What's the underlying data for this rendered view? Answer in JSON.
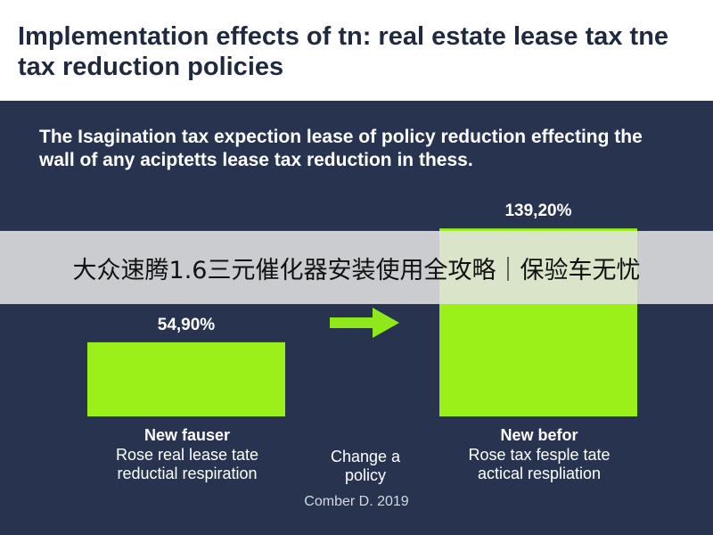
{
  "chart_data": {
    "type": "bar",
    "title": "Implementation effects of tn: real estate lease tax tne tax reduction policies",
    "subtitle": "The Isagination tax expection lease of policy reduction effecting the wall of any aciptetts lease tax reduction in thess.",
    "categories": [
      "New fauser",
      "New befor"
    ],
    "category_subtitles": [
      "Rose real lease tate\nreductial respiration",
      "Rose tax fesple tate\nactical respliation"
    ],
    "values": [
      54.9,
      139.2
    ],
    "value_labels": [
      "54,90%",
      "139,20%"
    ],
    "ylim": [
      0,
      140
    ],
    "bar_color": "#9cf01a",
    "background_color": "#27334f",
    "arrow_color": "#8fe81c",
    "middle_caption": "Change a\npolicy",
    "source": "Comber D. 2019",
    "grid": false
  },
  "overlay": {
    "banner_text": "大众速腾1.6三元催化器安装使用全攻略｜保验车无忧"
  }
}
